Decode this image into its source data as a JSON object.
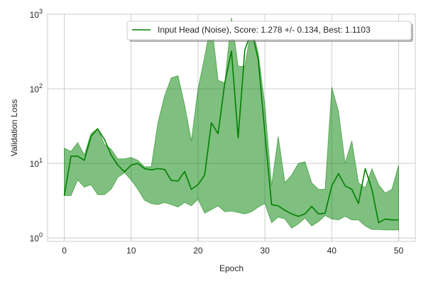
{
  "chart_data": {
    "type": "line",
    "xlabel": "Epoch",
    "ylabel": "Validation Loss",
    "yscale": "log",
    "xlim": [
      -2.5,
      52.5
    ],
    "ylim": [
      0.9,
      1000
    ],
    "x_ticks": [
      0,
      10,
      20,
      30,
      40,
      50
    ],
    "y_ticks": [
      {
        "value": 1,
        "base": "10",
        "exp": "0"
      },
      {
        "value": 10,
        "base": "10",
        "exp": "1"
      },
      {
        "value": 100,
        "base": "10",
        "exp": "2"
      },
      {
        "value": 1000,
        "base": "10",
        "exp": "3"
      }
    ],
    "grid": true,
    "legend_position": "top-right",
    "series": [
      {
        "name": "Input Head (Noise), Score: 1.278 +/- 0.134,  Best: 1.1103",
        "color": "#008000",
        "x": [
          0,
          1,
          2,
          3,
          4,
          5,
          6,
          7,
          8,
          9,
          10,
          11,
          12,
          13,
          14,
          15,
          16,
          17,
          18,
          19,
          20,
          21,
          22,
          23,
          24,
          25,
          26,
          27,
          28,
          29,
          30,
          31,
          32,
          33,
          34,
          35,
          36,
          37,
          38,
          39,
          40,
          41,
          42,
          43,
          44,
          45,
          46,
          47,
          48,
          49,
          50
        ],
        "y": [
          3.7,
          12.5,
          12.5,
          11,
          23,
          29,
          21,
          13,
          9.5,
          7.7,
          9.5,
          10,
          8.5,
          8.2,
          8.5,
          8.3,
          5.9,
          5.8,
          7.8,
          4.5,
          5.2,
          7,
          35,
          25,
          120,
          320,
          22,
          330,
          600,
          250,
          25,
          2.8,
          2.7,
          2.35,
          2.1,
          1.95,
          2.1,
          2.65,
          2.1,
          2.15,
          5,
          7.3,
          5,
          4.5,
          2.9,
          8.5,
          4.5,
          1.6,
          1.8,
          1.75,
          1.75
        ],
        "upper": [
          16,
          14.5,
          19,
          13,
          25,
          29.5,
          18,
          15.5,
          11.5,
          11.5,
          12,
          11,
          9,
          9,
          35,
          80,
          140,
          150,
          60,
          20,
          100,
          270,
          800,
          130,
          120,
          900,
          200,
          200,
          700,
          300,
          60,
          5,
          23,
          5.5,
          7,
          10,
          10.5,
          5.5,
          4.5,
          4.5,
          105,
          50,
          10,
          20,
          5.5,
          4.7,
          8.5,
          5.2,
          4,
          4.5,
          9.5
        ],
        "lower": [
          3.7,
          3.7,
          6,
          4.8,
          5.2,
          3.8,
          3.8,
          4.5,
          6.5,
          7.5,
          6,
          4.5,
          3.2,
          2.9,
          2.8,
          3,
          2.8,
          2.6,
          3,
          2.7,
          3.3,
          2.15,
          2.4,
          2.7,
          2.25,
          2.3,
          2.2,
          2.1,
          2.25,
          2.6,
          2.9,
          1.6,
          1.9,
          1.8,
          1.35,
          1.55,
          1.85,
          1.45,
          1.65,
          2,
          1.8,
          1.75,
          1.95,
          1.75,
          1.75,
          1.45,
          1.3,
          1.3,
          1.28,
          1.28,
          1.28
        ]
      }
    ]
  }
}
